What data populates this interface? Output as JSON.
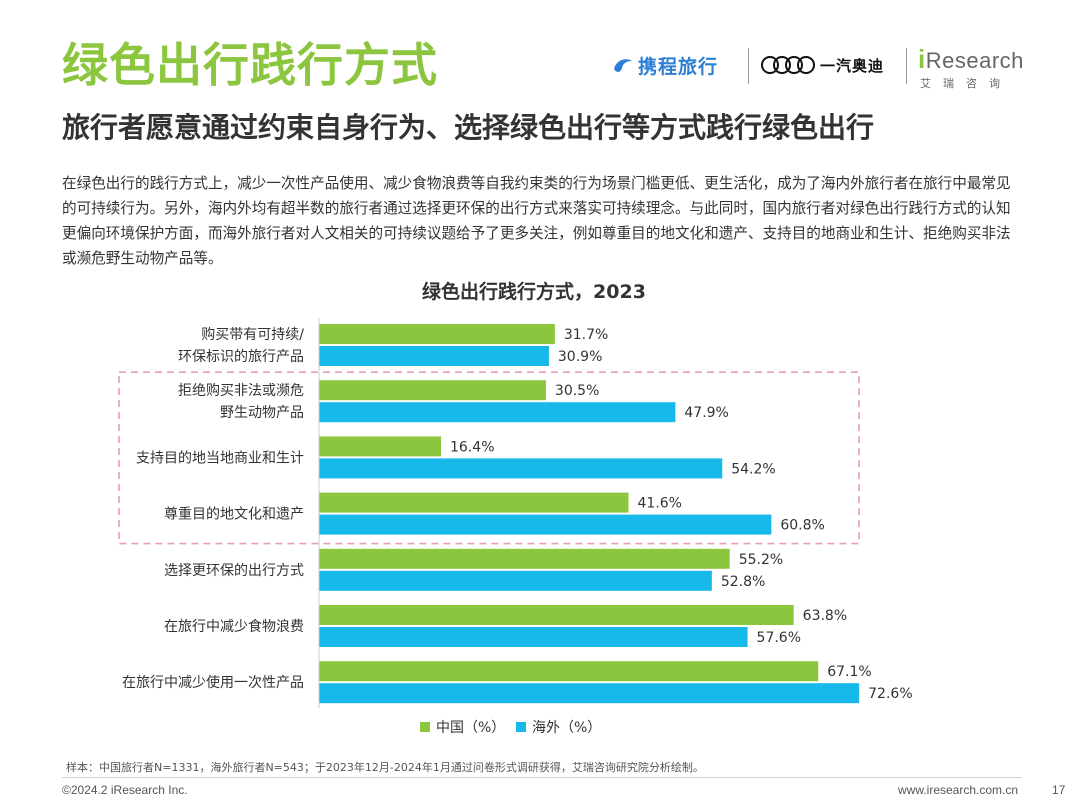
{
  "header": {
    "title": "绿色出行践行方式",
    "subtitle": "旅行者愿意通过约束自身行为、选择绿色出行等方式践行绿色出行",
    "logos": {
      "ctrip": "携程旅行",
      "audi_name": "一汽奥迪",
      "ires_i": "i",
      "ires_rest": "Research",
      "ires_cn": "艾瑞咨询"
    }
  },
  "body": {
    "paragraph": "在绿色出行的践行方式上，减少一次性产品使用、减少食物浪费等自我约束类的行为场景门槛更低、更生活化，成为了海内外旅行者在旅行中最常见的可持续行为。另外，海内外均有超半数的旅行者通过选择更环保的出行方式来落实可持续理念。与此同时，国内旅行者对绿色出行践行方式的认知更偏向环境保护方面，而海外旅行者对人文相关的可持续议题给予了更多关注，例如尊重目的地文化和遗产、支持目的地商业和生计、拒绝购买非法或濒危野生动物产品等。"
  },
  "colors": {
    "title_green": "#8cc63f",
    "series_china": "#8cc63f",
    "series_overseas": "#16b9ea",
    "highlight_box": "#e8a0a8"
  },
  "chart_data": {
    "type": "bar",
    "orientation": "horizontal",
    "title": "绿色出行践行方式，2023",
    "categories": [
      [
        "购买带有可持续/",
        "环保标识的旅行产品"
      ],
      [
        "拒绝购买非法或濒危",
        "野生动物产品"
      ],
      [
        "支持目的地当地商业和生计"
      ],
      [
        "尊重目的地文化和遗产"
      ],
      [
        "选择更环保的出行方式"
      ],
      [
        "在旅行中减少食物浪费"
      ],
      [
        "在旅行中减少使用一次性产品"
      ]
    ],
    "series": [
      {
        "name": "中国（%）",
        "color": "#8cc63f",
        "values": [
          31.7,
          30.5,
          16.4,
          41.6,
          55.2,
          63.8,
          67.1
        ]
      },
      {
        "name": "海外（%）",
        "color": "#16b9ea",
        "values": [
          30.9,
          47.9,
          54.2,
          60.8,
          52.8,
          57.6,
          72.6
        ]
      }
    ],
    "value_suffix": "%",
    "xlim": [
      0,
      100
    ],
    "highlighted_categories": [
      1,
      2,
      3
    ],
    "legend_position": "bottom",
    "grid": false
  },
  "footer": {
    "note": "样本：中国旅行者N=1331，海外旅行者N=543；于2023年12月-2024年1月通过问卷形式调研获得，艾瑞咨询研究院分析绘制。",
    "copyright": "©2024.2 iResearch Inc.",
    "url": "www.iresearch.com.cn",
    "page": "17"
  }
}
